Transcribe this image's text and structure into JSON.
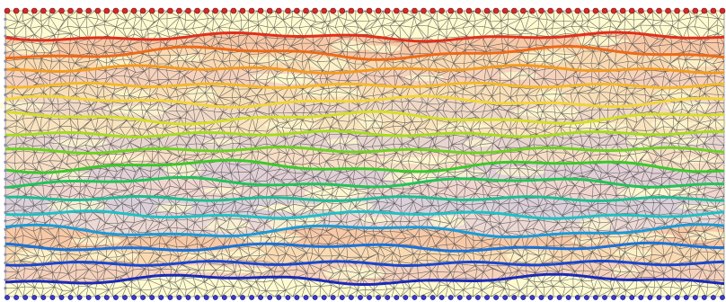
{
  "figure": {
    "type": "finite-element-mesh-contour",
    "background_color": "#fffbd0",
    "mesh_line_color": "#4a4a4a",
    "node_marker_color_top": "#d42a2a",
    "node_marker_color_bottom": "#3a3acc",
    "node_marker_color_side": "#8a8aa8",
    "top_boundary_node_count": 80,
    "bottom_boundary_node_count": 80,
    "contour_levels": [
      {
        "level": 1,
        "color": "#e0301c"
      },
      {
        "level": 2,
        "color": "#ec6a1a"
      },
      {
        "level": 3,
        "color": "#f39a20"
      },
      {
        "level": 4,
        "color": "#f4b82a"
      },
      {
        "level": 5,
        "color": "#f2d43a"
      },
      {
        "level": 6,
        "color": "#d4de2a"
      },
      {
        "level": 7,
        "color": "#a6da22"
      },
      {
        "level": 8,
        "color": "#70d024"
      },
      {
        "level": 9,
        "color": "#3cc82a"
      },
      {
        "level": 10,
        "color": "#22c25a"
      },
      {
        "level": 11,
        "color": "#1ebc94"
      },
      {
        "level": 12,
        "color": "#20c0c4"
      },
      {
        "level": 13,
        "color": "#1c9ad6"
      },
      {
        "level": 14,
        "color": "#1a72d8"
      },
      {
        "level": 15,
        "color": "#1a48cc"
      },
      {
        "level": 16,
        "color": "#1a2ab8"
      }
    ],
    "band_fill_colors": [
      "#f6b89a",
      "#f8cfa8",
      "#f3c4b6",
      "#f7d6b0",
      "#eccdc4",
      "#f8dcb8",
      "#e2c8d0",
      "#f4d4c2",
      "#d8c2d8",
      "#eccad0",
      "#cfc2dc",
      "#e6ccd6"
    ]
  }
}
